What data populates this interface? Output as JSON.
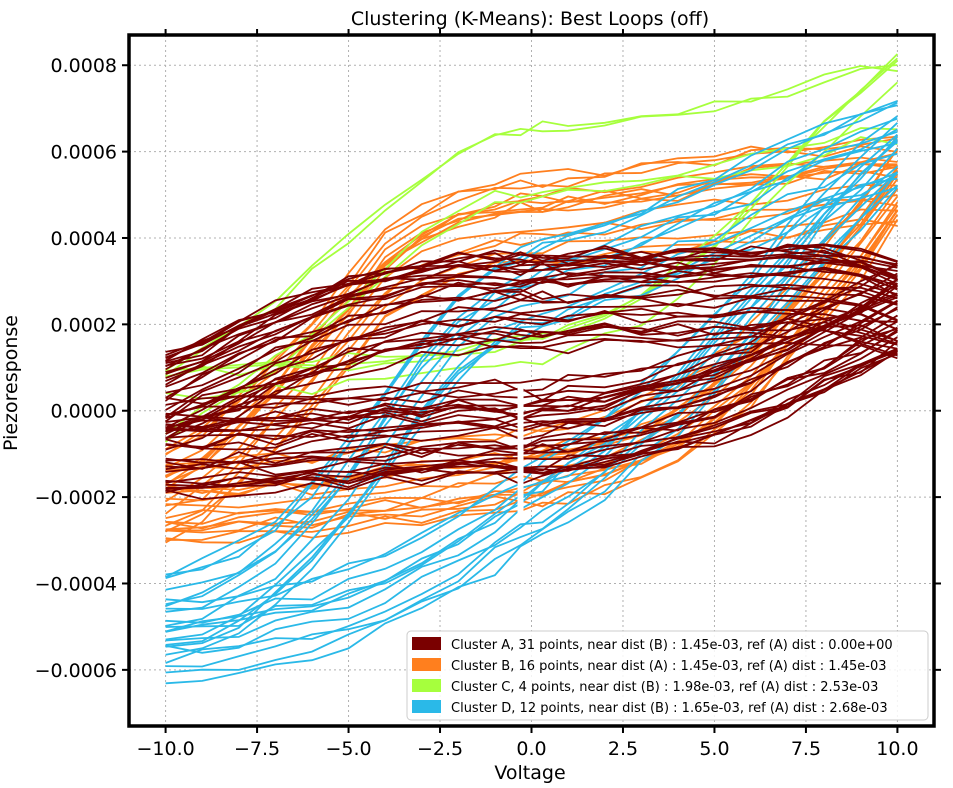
{
  "chart_data": {
    "type": "line",
    "title": "Clustering (K-Means): Best Loops (off)",
    "xlabel": "Voltage",
    "ylabel": "Piezoresponse",
    "xlim": [
      -11.0,
      11.0
    ],
    "ylim": [
      -0.00073,
      0.00087
    ],
    "xticks": [
      -10.0,
      -7.5,
      -5.0,
      -2.5,
      0.0,
      2.5,
      5.0,
      7.5,
      10.0
    ],
    "xtick_labels": [
      "−10.0",
      "−7.5",
      "−5.0",
      "−2.5",
      "0.0",
      "2.5",
      "5.0",
      "7.5",
      "10.0"
    ],
    "yticks": [
      -0.0006,
      -0.0004,
      -0.0002,
      0.0,
      0.0002,
      0.0004,
      0.0006,
      0.0008
    ],
    "ytick_labels": [
      "−0.0006",
      "−0.0004",
      "−0.0002",
      "0.0000",
      "0.0002",
      "0.0004",
      "0.0006",
      "0.0008"
    ],
    "grid": true,
    "legend_position": "bottom-right",
    "x": [
      -10.0,
      -9.0,
      -8.0,
      -7.0,
      -6.0,
      -5.0,
      -4.0,
      -3.0,
      -2.0,
      -1.0,
      -0.3,
      0.3,
      1.0,
      2.0,
      3.0,
      4.0,
      5.0,
      6.0,
      7.0,
      8.0,
      9.0,
      10.0
    ],
    "series": [
      {
        "name": "Cluster A, 31 points, near dist (B) : 1.45e-03, ref (A) dist : 0.00e+00",
        "color": "#7a0000",
        "count": 31,
        "upper": [
          2e-05,
          6e-05,
          0.0001,
          0.00014,
          0.00017,
          0.0002,
          0.00022,
          0.00024,
          0.00025,
          0.00025,
          0.00025,
          0.00025,
          0.00025,
          0.00026,
          0.00026,
          0.00026,
          0.00026,
          0.00027,
          0.00027,
          0.00027,
          0.00026,
          0.00023
        ],
        "lower": [
          -9e-05,
          -9e-05,
          -8e-05,
          -8e-05,
          -7e-05,
          -7e-05,
          -6e-05,
          -6e-05,
          -5e-05,
          -5e-05,
          -5e-05,
          -5e-05,
          -4e-05,
          -3e-05,
          -1e-05,
          1e-05,
          3e-05,
          6e-05,
          0.0001,
          0.00014,
          0.00018,
          0.00023
        ]
      },
      {
        "name": "Cluster B, 16 points, near dist (A) : 1.45e-03, ref (A) dist : 1.45e-03",
        "color": "#ff7f1e",
        "count": 16,
        "upper": [
          -0.0002,
          -0.00016,
          -8e-05,
          0.0,
          0.0001,
          0.0002,
          0.0003,
          0.00036,
          0.0004,
          0.00042,
          0.00043,
          0.00043,
          0.00044,
          0.00045,
          0.00046,
          0.00047,
          0.00048,
          0.00049,
          0.0005,
          0.00051,
          0.00052,
          0.00052
        ],
        "lower": [
          -0.00022,
          -0.00022,
          -0.00021,
          -0.0002,
          -0.0002,
          -0.00019,
          -0.00018,
          -0.00017,
          -0.00016,
          -0.00015,
          -0.00014,
          -0.00013,
          -0.00012,
          -0.0001,
          -7e-05,
          -3e-05,
          3e-05,
          0.0001,
          0.0002,
          0.0003,
          0.0004,
          0.00052
        ]
      },
      {
        "name": "Cluster C, 4 points, near dist (B) : 1.98e-03, ref (A) dist : 2.53e-03",
        "color": "#a6ff3d",
        "count": 4,
        "upper": [
          3e-05,
          8e-05,
          0.00013,
          0.00019,
          0.00026,
          0.00033,
          0.00041,
          0.00048,
          0.00053,
          0.00057,
          0.00058,
          0.00059,
          0.0006,
          0.00061,
          0.00062,
          0.00063,
          0.00064,
          0.00066,
          0.00068,
          0.0007,
          0.00072,
          0.00073
        ],
        "lower": [
          0.0,
          0.0,
          0.0,
          1e-05,
          1e-05,
          2e-05,
          3e-05,
          4e-05,
          5e-05,
          6e-05,
          7e-05,
          8e-05,
          0.0001,
          0.00013,
          0.00017,
          0.00023,
          0.0003,
          0.00039,
          0.00048,
          0.00057,
          0.00065,
          0.00073
        ]
      },
      {
        "name": "Cluster D, 12 points, near dist (B) : 1.65e-03, ref (A) dist : 2.68e-03",
        "color": "#2ab9e8",
        "count": 12,
        "upper": [
          -0.00048,
          -0.00046,
          -0.00042,
          -0.00036,
          -0.00028,
          -0.00018,
          -6e-05,
          6e-05,
          0.00016,
          0.00023,
          0.00026,
          0.00028,
          0.0003,
          0.00033,
          0.00036,
          0.0004,
          0.00043,
          0.00047,
          0.00051,
          0.00055,
          0.00058,
          0.00061
        ],
        "lower": [
          -0.00052,
          -0.00051,
          -0.0005,
          -0.00048,
          -0.00046,
          -0.00043,
          -0.0004,
          -0.00036,
          -0.00031,
          -0.00026,
          -0.00022,
          -0.00019,
          -0.00015,
          -9e-05,
          -2e-05,
          6e-05,
          0.00015,
          0.00024,
          0.00034,
          0.00044,
          0.00053,
          0.00061
        ]
      }
    ]
  }
}
